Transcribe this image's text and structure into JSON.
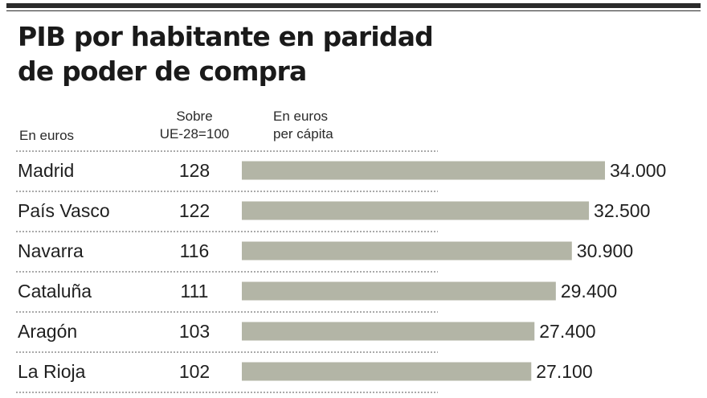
{
  "chart_data": {
    "type": "bar",
    "orientation": "horizontal",
    "title": "PIB por habitante en paridad de poder de compra",
    "column_headers": {
      "unit": "En euros",
      "index_line1": "Sobre",
      "index_line2": "UE-28=100",
      "value_line1": "En euros",
      "value_line2": "per cápita"
    },
    "categories": [
      "Madrid",
      "País Vasco",
      "Navarra",
      "Cataluña",
      "Aragón",
      "La Rioja"
    ],
    "index_values": [
      128,
      122,
      116,
      111,
      103,
      102
    ],
    "values": [
      34000,
      32500,
      30900,
      29400,
      27400,
      27100
    ],
    "value_labels": [
      "34.000",
      "32.500",
      "30.900",
      "29.400",
      "27.400",
      "27.100"
    ],
    "xlim": [
      0,
      34000
    ],
    "bar_color": "#b3b5a6",
    "grid": false
  }
}
